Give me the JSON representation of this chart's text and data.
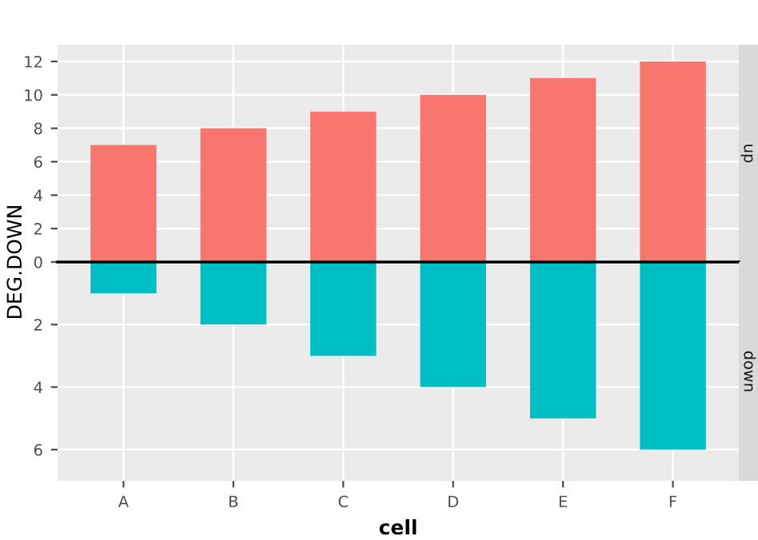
{
  "chart_data": [
    {
      "type": "bar",
      "title": "up",
      "ylabel": "DEG.DOWN",
      "categories": [
        null,
        null,
        null,
        null,
        null,
        null
      ],
      "series": [
        {
          "color": "#f8766d",
          "values": [
            7,
            8,
            9,
            10,
            11,
            12
          ]
        }
      ],
      "ylim": [
        0,
        13
      ],
      "yticks": [
        0,
        2,
        4,
        6,
        8,
        10,
        12
      ],
      "grid": true,
      "tick_labels": "y"
    },
    {
      "type": "bar",
      "title": "down",
      "xlabel": "cell",
      "categories": [
        "A",
        "B",
        "C",
        "D",
        "E",
        "F"
      ],
      "series": [
        {
          "color": "#00bfc4",
          "values": [
            1,
            2,
            3,
            4,
            5,
            6
          ]
        }
      ],
      "ylim": [
        7,
        0
      ],
      "yticks": [
        2,
        4,
        6
      ],
      "grid": true,
      "ref_lines": [
        {
          "axis": "y",
          "value": 0,
          "color": "#000000"
        }
      ]
    }
  ]
}
